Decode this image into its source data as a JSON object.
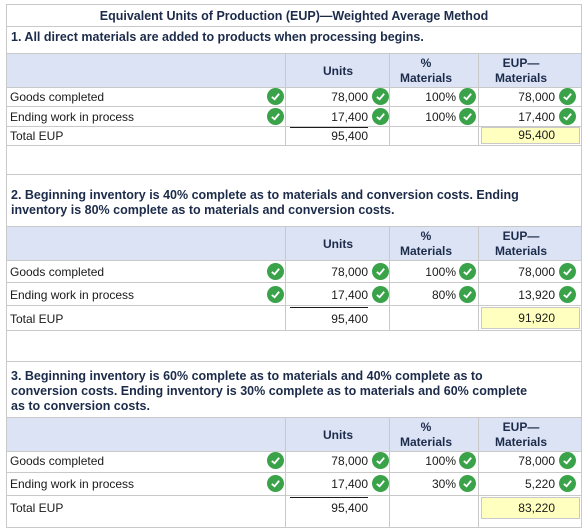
{
  "title": "Equivalent Units of Production (EUP)—Weighted Average Method",
  "headers": {
    "units": "Units",
    "pct_top": "%",
    "pct_bottom": "Materials",
    "eup_top": "EUP—",
    "eup_bottom": "Materials"
  },
  "sections": [
    {
      "question": "1. All direct materials are added to products when processing begins.",
      "rows": [
        {
          "label": "Goods completed",
          "units": "78,000",
          "pct": "100%",
          "eup": "78,000"
        },
        {
          "label": "Ending work in process",
          "units": "17,400",
          "pct": "100%",
          "eup": "17,400"
        }
      ],
      "total": {
        "label": "Total EUP",
        "units": "95,400",
        "eup": "95,400"
      }
    },
    {
      "question_l1": "2. Beginning inventory is 40% complete as to materials and conversion costs. Ending",
      "question_l2": "inventory is 80% complete as to materials and conversion costs.",
      "rows": [
        {
          "label": "Goods completed",
          "units": "78,000",
          "pct": "100%",
          "eup": "78,000"
        },
        {
          "label": "Ending work in process",
          "units": "17,400",
          "pct": "80%",
          "eup": "13,920"
        }
      ],
      "total": {
        "label": "Total EUP",
        "units": "95,400",
        "eup": "91,920"
      }
    },
    {
      "question_l1": "3. Beginning inventory is 60% complete as to materials and 40% complete as to",
      "question_l2": "conversion costs. Ending inventory is 30% complete as to materials and 60% complete",
      "question_l3": "as to conversion costs.",
      "rows": [
        {
          "label": "Goods completed",
          "units": "78,000",
          "pct": "100%",
          "eup": "78,000"
        },
        {
          "label": "Ending work in process",
          "units": "17,400",
          "pct": "30%",
          "eup": "5,220"
        }
      ],
      "total": {
        "label": "Total EUP",
        "units": "95,400",
        "eup": "83,220"
      }
    }
  ],
  "colors": {
    "header_bg": "#dbe3f5",
    "check": "#3aa34a",
    "highlight": "#ffffc0"
  },
  "icons": {
    "check": "check-circle-icon"
  }
}
